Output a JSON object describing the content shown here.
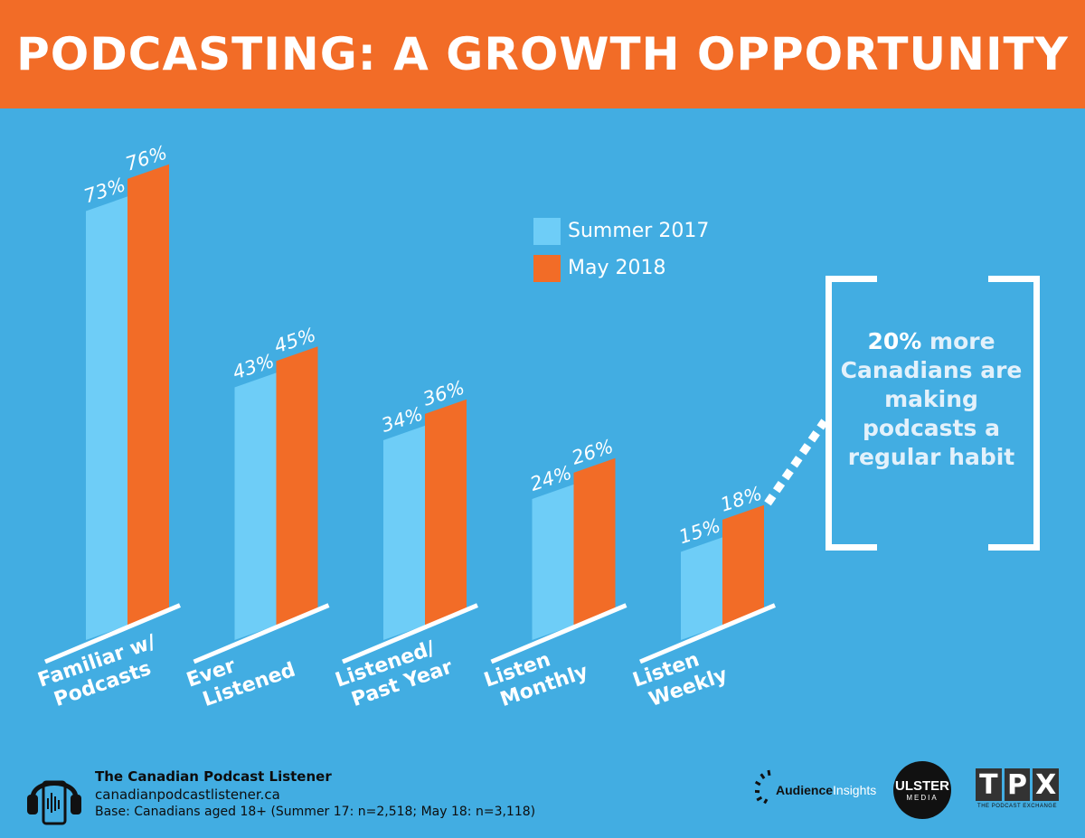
{
  "header": {
    "title": "PODCASTING: A GROWTH OPPORTUNITY"
  },
  "colors": {
    "background": "#42ade2",
    "header": "#f26c27",
    "summer": "#6ecdf7",
    "may": "#f26c27",
    "white": "#ffffff"
  },
  "chart_data": {
    "type": "bar",
    "title": "PODCASTING: A GROWTH OPPORTUNITY",
    "categories": [
      "Familiar w/ Podcasts",
      "Ever Listened",
      "Listened/ Past Year",
      "Listen Monthly",
      "Listen Weekly"
    ],
    "category_lines": [
      [
        "Familiar w/",
        "Podcasts"
      ],
      [
        "Ever",
        "Listened"
      ],
      [
        "Listened/",
        "Past Year"
      ],
      [
        "Listen",
        "Monthly"
      ],
      [
        "Listen",
        "Weekly"
      ]
    ],
    "series": [
      {
        "name": "Summer 2017",
        "values": [
          73,
          43,
          34,
          24,
          15
        ],
        "labels": [
          "73%",
          "43%",
          "34%",
          "24%",
          "15%"
        ]
      },
      {
        "name": "May 2018",
        "values": [
          76,
          45,
          36,
          26,
          18
        ],
        "labels": [
          "76%",
          "45%",
          "36%",
          "26%",
          "18%"
        ]
      }
    ],
    "ylim": [
      0,
      100
    ],
    "xlabel": "",
    "ylabel": "",
    "legend": "top-center"
  },
  "legend": {
    "summer": "Summer 2017",
    "may": "May 2018"
  },
  "callout": {
    "pct": "20%",
    "rest": "more Canadians are making podcasts a regular habit"
  },
  "footer": {
    "title": "The Canadian Podcast Listener",
    "url": "canadianpodcastlistener.ca",
    "base": "Base: Canadians aged 18+ (Summer 17: n=2,518; May 18: n=3,118)"
  },
  "logos": {
    "audience_insights_a": "Audience",
    "audience_insights_b": "Insights",
    "ulster_line1": "ULSTER",
    "ulster_line2": "MEDIA",
    "tpx_t": "T",
    "tpx_p": "P",
    "tpx_x": "X",
    "tpx_sub": "THE PODCAST EXCHANGE"
  }
}
